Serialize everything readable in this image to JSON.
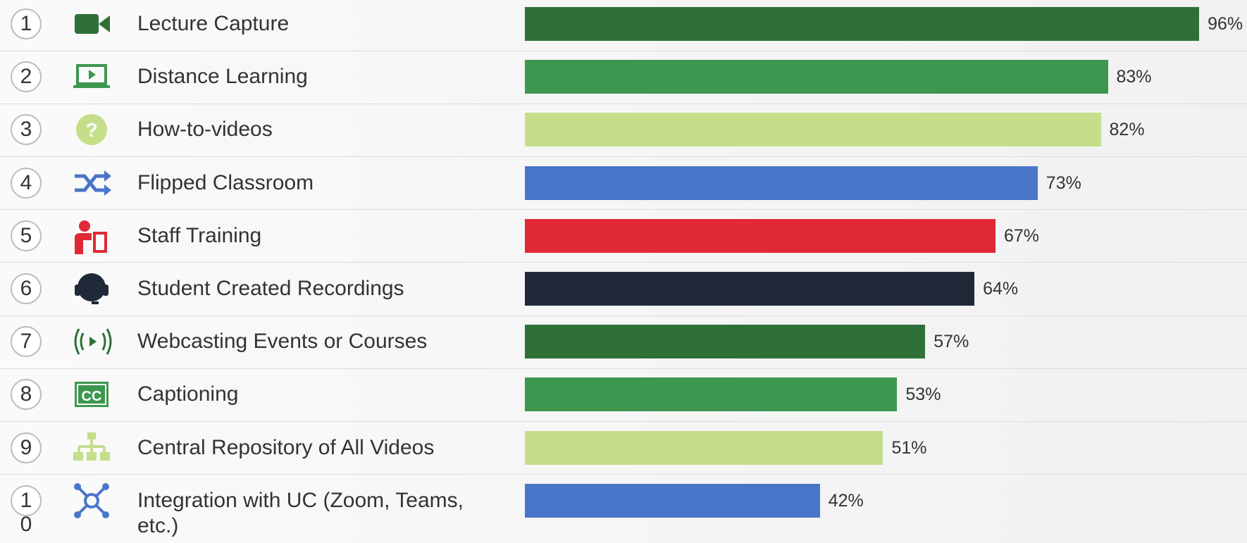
{
  "chart_data": {
    "type": "bar",
    "orientation": "horizontal",
    "ranks": [
      1,
      2,
      3,
      4,
      5,
      6,
      7,
      8,
      9,
      10
    ],
    "categories": [
      "Lecture Capture",
      "Distance Learning",
      "How-to-videos",
      "Flipped Classroom",
      "Staff Training",
      "Student Created Recordings",
      "Webcasting Events or Courses",
      "Captioning",
      "Central Repository of All Videos",
      "Integration with UC (Zoom, Teams, etc.)"
    ],
    "values": [
      96,
      83,
      82,
      73,
      67,
      64,
      57,
      53,
      51,
      42
    ],
    "value_labels": [
      "96%",
      "83%",
      "82%",
      "73%",
      "67%",
      "64%",
      "57%",
      "53%",
      "51%",
      "42%"
    ],
    "colors": [
      "#2e7038",
      "#3d974e",
      "#c5de8a",
      "#4a76c9",
      "#e02935",
      "#1f2937",
      "#2e7038",
      "#3d974e",
      "#c5de8a",
      "#4a76c9"
    ],
    "xlim": [
      0,
      100
    ]
  }
}
